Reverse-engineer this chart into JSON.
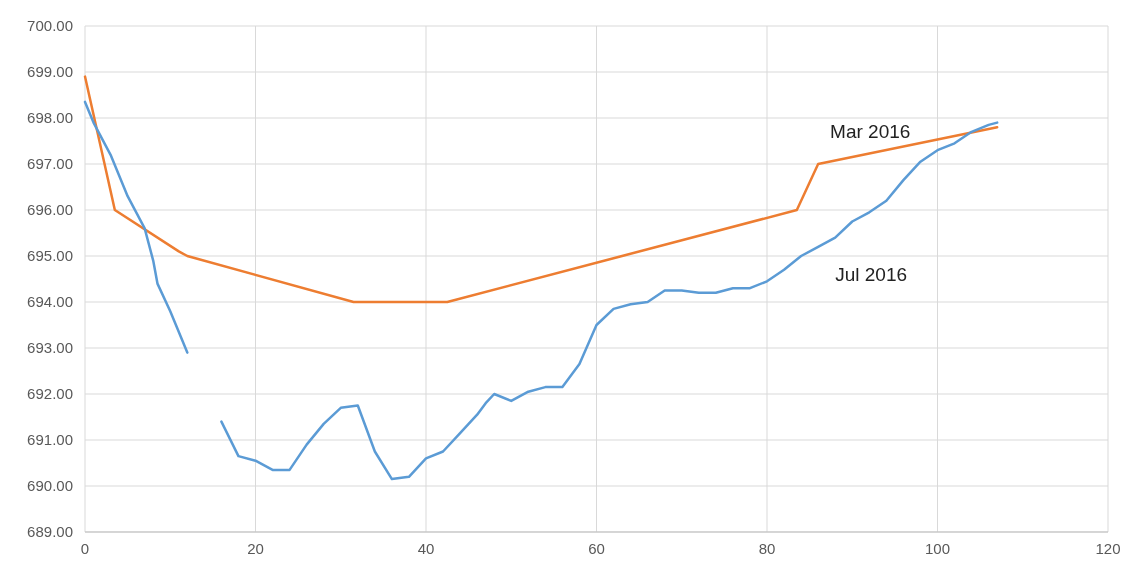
{
  "chart_data": {
    "type": "line",
    "x": [
      0,
      3.5,
      11,
      12,
      31.5,
      42.5,
      63,
      83.5,
      86,
      107
    ],
    "series": [
      {
        "name": "Mar 2016",
        "color": "#ed7d31",
        "values": [
          698.9,
          696.0,
          695.1,
          695.0,
          694.0,
          694.0,
          695.0,
          696.0,
          697.0,
          697.8
        ]
      },
      {
        "name": "Jul 2016",
        "color": "#5b9bd5",
        "x": [
          0,
          1,
          3,
          5,
          7,
          8,
          8.5,
          10,
          12,
          14,
          16,
          18,
          20,
          22,
          24,
          26,
          28,
          30,
          32,
          34,
          36,
          38,
          40,
          42,
          44,
          46,
          47,
          48,
          50,
          52,
          54,
          56,
          58,
          60,
          62,
          64,
          66,
          68,
          70,
          72,
          74,
          76,
          78,
          80,
          82,
          84,
          86,
          88,
          90,
          92,
          94,
          96,
          98,
          100,
          102,
          104,
          106,
          107
        ],
        "values": [
          698.35,
          697.9,
          697.2,
          696.3,
          695.6,
          694.9,
          694.4,
          693.8,
          692.9,
          null,
          691.4,
          690.65,
          690.55,
          690.35,
          690.35,
          690.9,
          691.35,
          691.7,
          691.75,
          690.75,
          690.15,
          690.2,
          690.6,
          690.75,
          691.15,
          691.55,
          691.8,
          692.0,
          691.85,
          692.05,
          692.15,
          692.15,
          692.65,
          693.5,
          693.85,
          693.95,
          694.0,
          694.25,
          694.25,
          694.2,
          694.2,
          694.3,
          694.3,
          694.45,
          694.7,
          695.0,
          695.2,
          695.4,
          695.75,
          695.95,
          696.2,
          696.65,
          697.05,
          697.3,
          697.45,
          697.7,
          697.85,
          697.9
        ]
      }
    ],
    "xlim": [
      0,
      120
    ],
    "xticks": [
      0,
      20,
      40,
      60,
      80,
      100,
      120
    ],
    "ylim": [
      689,
      700
    ],
    "yticks": [
      {
        "value": 689,
        "label": "689.00"
      },
      {
        "value": 690,
        "label": "690.00"
      },
      {
        "value": 691,
        "label": "691.00"
      },
      {
        "value": 692,
        "label": "692.00"
      },
      {
        "value": 693,
        "label": "693.00"
      },
      {
        "value": 694,
        "label": "694.00"
      },
      {
        "value": 695,
        "label": "695.00"
      },
      {
        "value": 696,
        "label": "696.00"
      },
      {
        "value": 697,
        "label": "697.00"
      },
      {
        "value": 698,
        "label": "698.00"
      },
      {
        "value": 699,
        "label": "699.00"
      },
      {
        "value": 700,
        "label": "700.00"
      }
    ],
    "grid": true,
    "marker": "none",
    "line_style": "solid"
  }
}
